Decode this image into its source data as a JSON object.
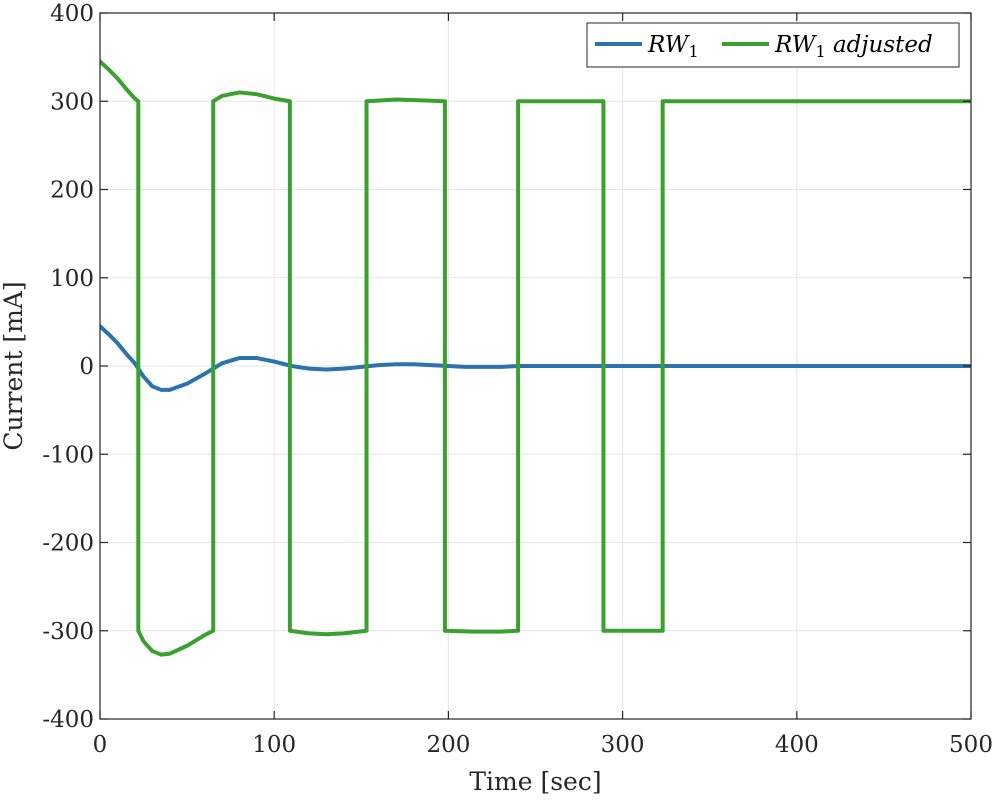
{
  "chart_data": {
    "type": "line",
    "xlabel": "Time [sec]",
    "ylabel": "Current [mA]",
    "xlim": [
      0,
      500
    ],
    "ylim": [
      -400,
      400
    ],
    "xticks": [
      "0",
      "100",
      "200",
      "300",
      "400",
      "500"
    ],
    "yticks": [
      "400",
      "300",
      "200",
      "100",
      "0",
      "-100",
      "-200",
      "-300",
      "-400"
    ],
    "xtick_values": [
      0,
      100,
      200,
      300,
      400,
      500
    ],
    "ytick_values": [
      400,
      300,
      200,
      100,
      0,
      -100,
      -200,
      -300,
      -400
    ],
    "grid": true,
    "legend_position": "top-right",
    "series": [
      {
        "name": "RW1",
        "legend_main": "RW",
        "legend_sub": "1",
        "legend_rest": "",
        "color": "#2a72b0",
        "x": [
          0,
          5,
          10,
          15,
          20,
          25,
          30,
          35,
          40,
          50,
          60,
          70,
          80,
          90,
          100,
          110,
          120,
          130,
          140,
          150,
          160,
          170,
          180,
          190,
          200,
          210,
          220,
          230,
          240,
          250,
          260,
          270,
          280,
          290,
          300,
          320,
          350,
          400,
          450,
          500
        ],
        "y": [
          45,
          36,
          26,
          14,
          3,
          -12,
          -23,
          -27,
          -27,
          -20,
          -9,
          3,
          9,
          9,
          5,
          0,
          -3,
          -4,
          -3,
          -1,
          1,
          2,
          2,
          1,
          0,
          -1,
          -1,
          -1,
          0,
          0,
          0,
          0,
          0,
          0,
          0,
          0,
          0,
          0,
          0,
          0
        ]
      },
      {
        "name": "RW1 adjusted",
        "legend_main": "RW",
        "legend_sub": "1",
        "legend_rest": " adjusted",
        "color": "#3aa12e",
        "x": [
          0,
          5,
          10,
          15,
          20,
          22,
          22,
          25,
          30,
          35,
          40,
          50,
          60,
          65,
          65,
          70,
          80,
          90,
          100,
          109,
          109,
          120,
          130,
          140,
          153,
          153,
          170,
          185,
          198,
          198,
          215,
          230,
          240,
          240,
          260,
          280,
          289,
          289,
          305,
          323,
          323,
          350,
          400,
          450,
          500
        ],
        "y": [
          345,
          336,
          326,
          314,
          303,
          300,
          -300,
          -312,
          -323,
          -327,
          -326,
          -317,
          -305,
          -300,
          300,
          306,
          310,
          308,
          303,
          300,
          -300,
          -303,
          -304,
          -303,
          -300,
          300,
          302,
          301,
          300,
          -300,
          -301,
          -301,
          -300,
          300,
          300,
          300,
          300,
          -300,
          -300,
          -300,
          300,
          300,
          300,
          300,
          300
        ]
      }
    ]
  }
}
